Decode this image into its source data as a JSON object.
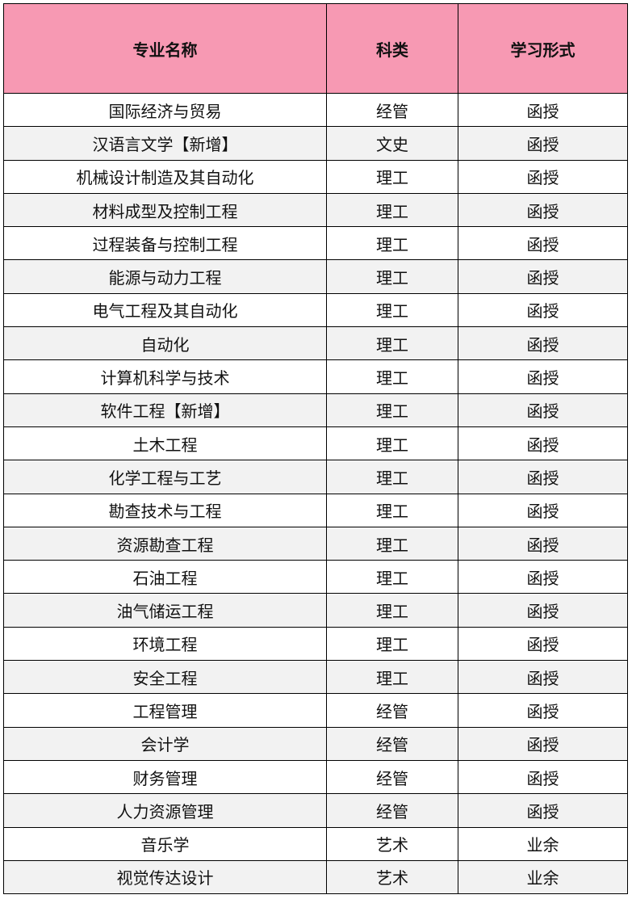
{
  "header": {
    "major": "专业名称",
    "category": "科类",
    "mode": "学习形式"
  },
  "colors": {
    "header_bg": "#F799B3",
    "alt_row_bg": "#F2F2F2"
  },
  "rows": [
    {
      "major": "国际经济与贸易",
      "category": "经管",
      "mode": "函授"
    },
    {
      "major": "汉语言文学【新增】",
      "category": "文史",
      "mode": "函授"
    },
    {
      "major": "机械设计制造及其自动化",
      "category": "理工",
      "mode": "函授"
    },
    {
      "major": "材料成型及控制工程",
      "category": "理工",
      "mode": "函授"
    },
    {
      "major": "过程装备与控制工程",
      "category": "理工",
      "mode": "函授"
    },
    {
      "major": "能源与动力工程",
      "category": "理工",
      "mode": "函授"
    },
    {
      "major": "电气工程及其自动化",
      "category": "理工",
      "mode": "函授"
    },
    {
      "major": "自动化",
      "category": "理工",
      "mode": "函授"
    },
    {
      "major": "计算机科学与技术",
      "category": "理工",
      "mode": "函授"
    },
    {
      "major": "软件工程【新增】",
      "category": "理工",
      "mode": "函授"
    },
    {
      "major": "土木工程",
      "category": "理工",
      "mode": "函授"
    },
    {
      "major": "化学工程与工艺",
      "category": "理工",
      "mode": "函授"
    },
    {
      "major": "勘查技术与工程",
      "category": "理工",
      "mode": "函授"
    },
    {
      "major": "资源勘查工程",
      "category": "理工",
      "mode": "函授"
    },
    {
      "major": "石油工程",
      "category": "理工",
      "mode": "函授"
    },
    {
      "major": "油气储运工程",
      "category": "理工",
      "mode": "函授"
    },
    {
      "major": "环境工程",
      "category": "理工",
      "mode": "函授"
    },
    {
      "major": "安全工程",
      "category": "理工",
      "mode": "函授"
    },
    {
      "major": "工程管理",
      "category": "经管",
      "mode": "函授"
    },
    {
      "major": "会计学",
      "category": "经管",
      "mode": "函授"
    },
    {
      "major": "财务管理",
      "category": "经管",
      "mode": "函授"
    },
    {
      "major": "人力资源管理",
      "category": "经管",
      "mode": "函授"
    },
    {
      "major": "音乐学",
      "category": "艺术",
      "mode": "业余"
    },
    {
      "major": "视觉传达设计",
      "category": "艺术",
      "mode": "业余"
    }
  ]
}
